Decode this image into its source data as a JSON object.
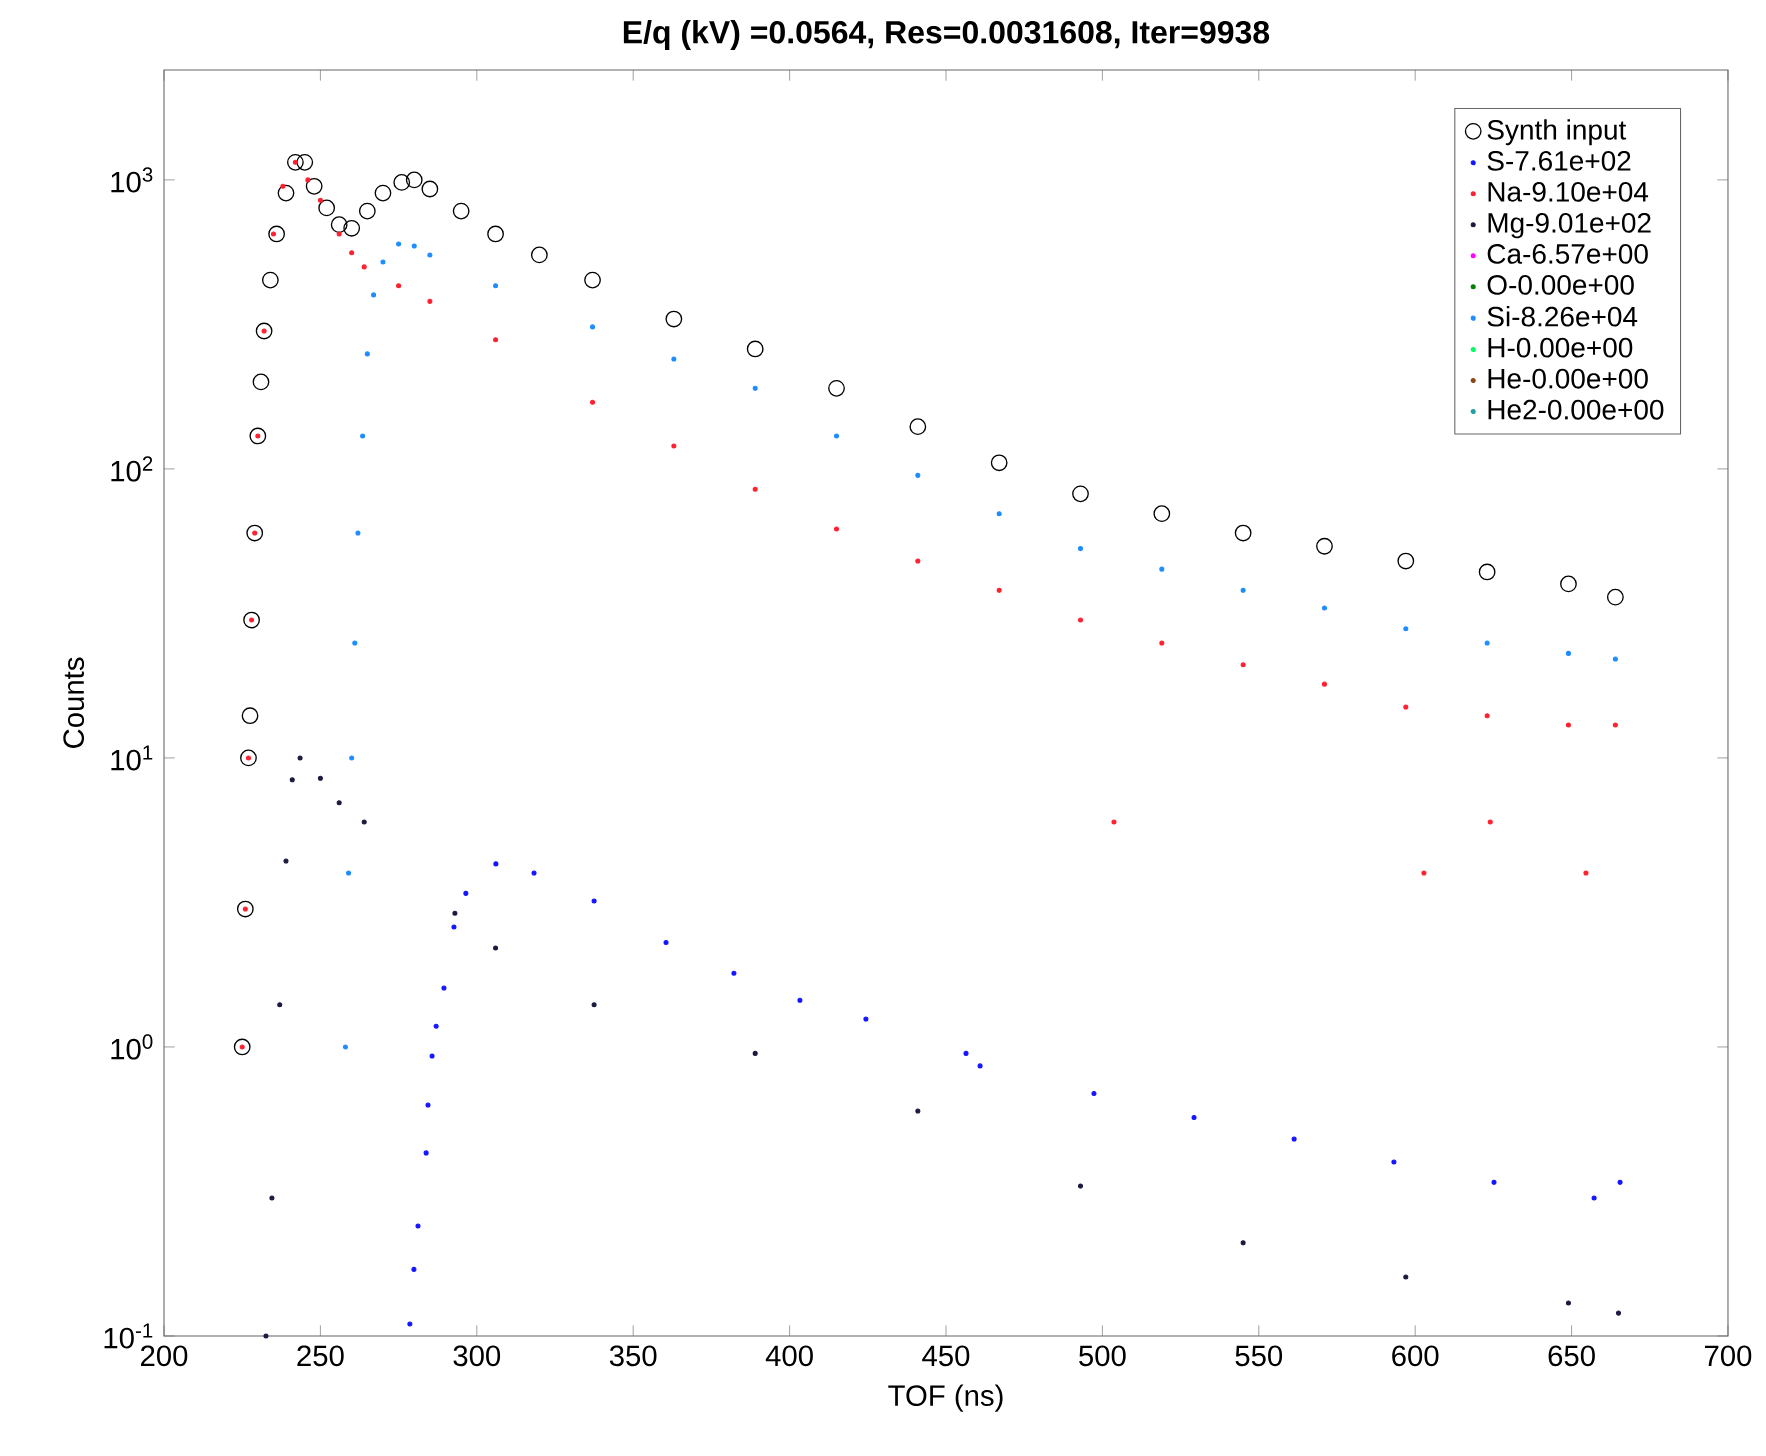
{
  "chart_data": {
    "type": "scatter",
    "title": "E/q (kV) =0.0564, Res=0.0031608, Iter=9938",
    "xlabel": "TOF (ns)",
    "ylabel": "Counts",
    "log": "y",
    "xlim": [
      200,
      700
    ],
    "ylim": [
      0.1,
      2400
    ],
    "xticks": [
      200,
      250,
      300,
      350,
      400,
      450,
      500,
      550,
      600,
      650,
      700
    ],
    "yticks": [
      {
        "value": 0.1,
        "label": "10$^{-1}$"
      },
      {
        "value": 1,
        "label": "10$^{0}$"
      },
      {
        "value": 10,
        "label": "10$^{1}$"
      },
      {
        "value": 100,
        "label": "10$^{2}$"
      },
      {
        "value": 1000,
        "label": "10$^{3}$"
      }
    ],
    "legend": "top right",
    "grid": false,
    "series": [
      {
        "name": "Synth input",
        "color": "#000000",
        "marker": "circle",
        "x": [
          225,
          226,
          227,
          227.5,
          228,
          229,
          230,
          231,
          232,
          234,
          236,
          239,
          242,
          245,
          248,
          252,
          256,
          260,
          265,
          270,
          276,
          280,
          285,
          295,
          306,
          320,
          337,
          363,
          389,
          415,
          441,
          467,
          493,
          519,
          545,
          571,
          597,
          623,
          649,
          664
        ],
        "values": [
          1,
          3,
          10,
          14,
          30,
          60,
          130,
          200,
          300,
          450,
          650,
          900,
          1150,
          1150,
          950,
          800,
          700,
          680,
          780,
          900,
          980,
          1000,
          930,
          780,
          650,
          550,
          450,
          330,
          260,
          190,
          140,
          105,
          82,
          70,
          60,
          54,
          48,
          44,
          40,
          36
        ]
      },
      {
        "name": "S-7.61e+02",
        "color": "#1414ff",
        "marker": "point",
        "x": [
          278.6,
          279.9,
          281.2,
          283.8,
          284.4,
          285.7,
          287,
          289.5,
          292.7,
          296.5,
          306.1,
          318.3,
          337.5,
          360.5,
          382.2,
          403.3,
          424.4,
          456.4,
          460.9,
          497.3,
          529.3,
          561.3,
          593.2,
          625.2,
          657.2,
          665.5
        ],
        "values": [
          0.11,
          0.17,
          0.24,
          0.43,
          0.63,
          0.93,
          1.18,
          1.6,
          2.6,
          3.4,
          4.3,
          4.0,
          3.2,
          2.3,
          1.8,
          1.45,
          1.25,
          0.95,
          0.86,
          0.69,
          0.57,
          0.48,
          0.4,
          0.34,
          0.3,
          0.34
        ]
      },
      {
        "name": "Na-9.10e+04",
        "color": "#ff2030",
        "marker": "point",
        "x": [
          225,
          226,
          227,
          228,
          229,
          230,
          232,
          235,
          238,
          242,
          246,
          250,
          256,
          260,
          264,
          275,
          285,
          306,
          337,
          363,
          389,
          415,
          441,
          467,
          493,
          503.7,
          519,
          545,
          571,
          597,
          602.8,
          623,
          624,
          649,
          654.6,
          664
        ],
        "values": [
          1,
          3,
          10,
          30,
          60,
          130,
          300,
          650,
          950,
          1150,
          1000,
          850,
          650,
          560,
          500,
          430,
          380,
          280,
          170,
          120,
          85,
          62,
          48,
          38,
          30,
          6,
          25,
          21,
          18,
          15,
          4,
          14,
          6,
          13,
          4,
          13
        ]
      },
      {
        "name": "Mg-9.01e+02",
        "color": "#1a1a40",
        "marker": "point",
        "x": [
          232.6,
          234.5,
          237,
          239,
          241,
          243.5,
          250,
          256,
          264,
          293,
          306,
          337.5,
          389,
          441,
          493,
          545,
          597,
          649,
          665
        ],
        "values": [
          0.1,
          0.3,
          1.4,
          4.4,
          8.4,
          10,
          8.5,
          7,
          6,
          2.9,
          2.2,
          1.4,
          0.95,
          0.6,
          0.33,
          0.21,
          0.16,
          0.13,
          0.12
        ]
      },
      {
        "name": "Ca-6.57e+00",
        "color": "#ff00ff",
        "marker": "point"
      },
      {
        "name": "O-0.00e+00",
        "color": "#008000",
        "marker": "point"
      },
      {
        "name": "Si-8.26e+04",
        "color": "#1e8cff",
        "marker": "point",
        "x": [
          258,
          259,
          260,
          261,
          262,
          263.5,
          265,
          267,
          270,
          275,
          280,
          285,
          306,
          337,
          363,
          389,
          415,
          441,
          467,
          493,
          519,
          545,
          571,
          597,
          623,
          649,
          664
        ],
        "values": [
          1,
          4,
          10,
          25,
          60,
          130,
          250,
          400,
          520,
          600,
          590,
          550,
          430,
          310,
          240,
          190,
          130,
          95,
          70,
          53,
          45,
          38,
          33,
          28,
          25,
          23,
          22
        ]
      },
      {
        "name": "H-0.00e+00",
        "color": "#00ff60",
        "marker": "point"
      },
      {
        "name": "He-0.00e+00",
        "color": "#8b4513",
        "marker": "point"
      },
      {
        "name": "He2-0.00e+00",
        "color": "#20a0a0",
        "marker": "point"
      }
    ]
  }
}
